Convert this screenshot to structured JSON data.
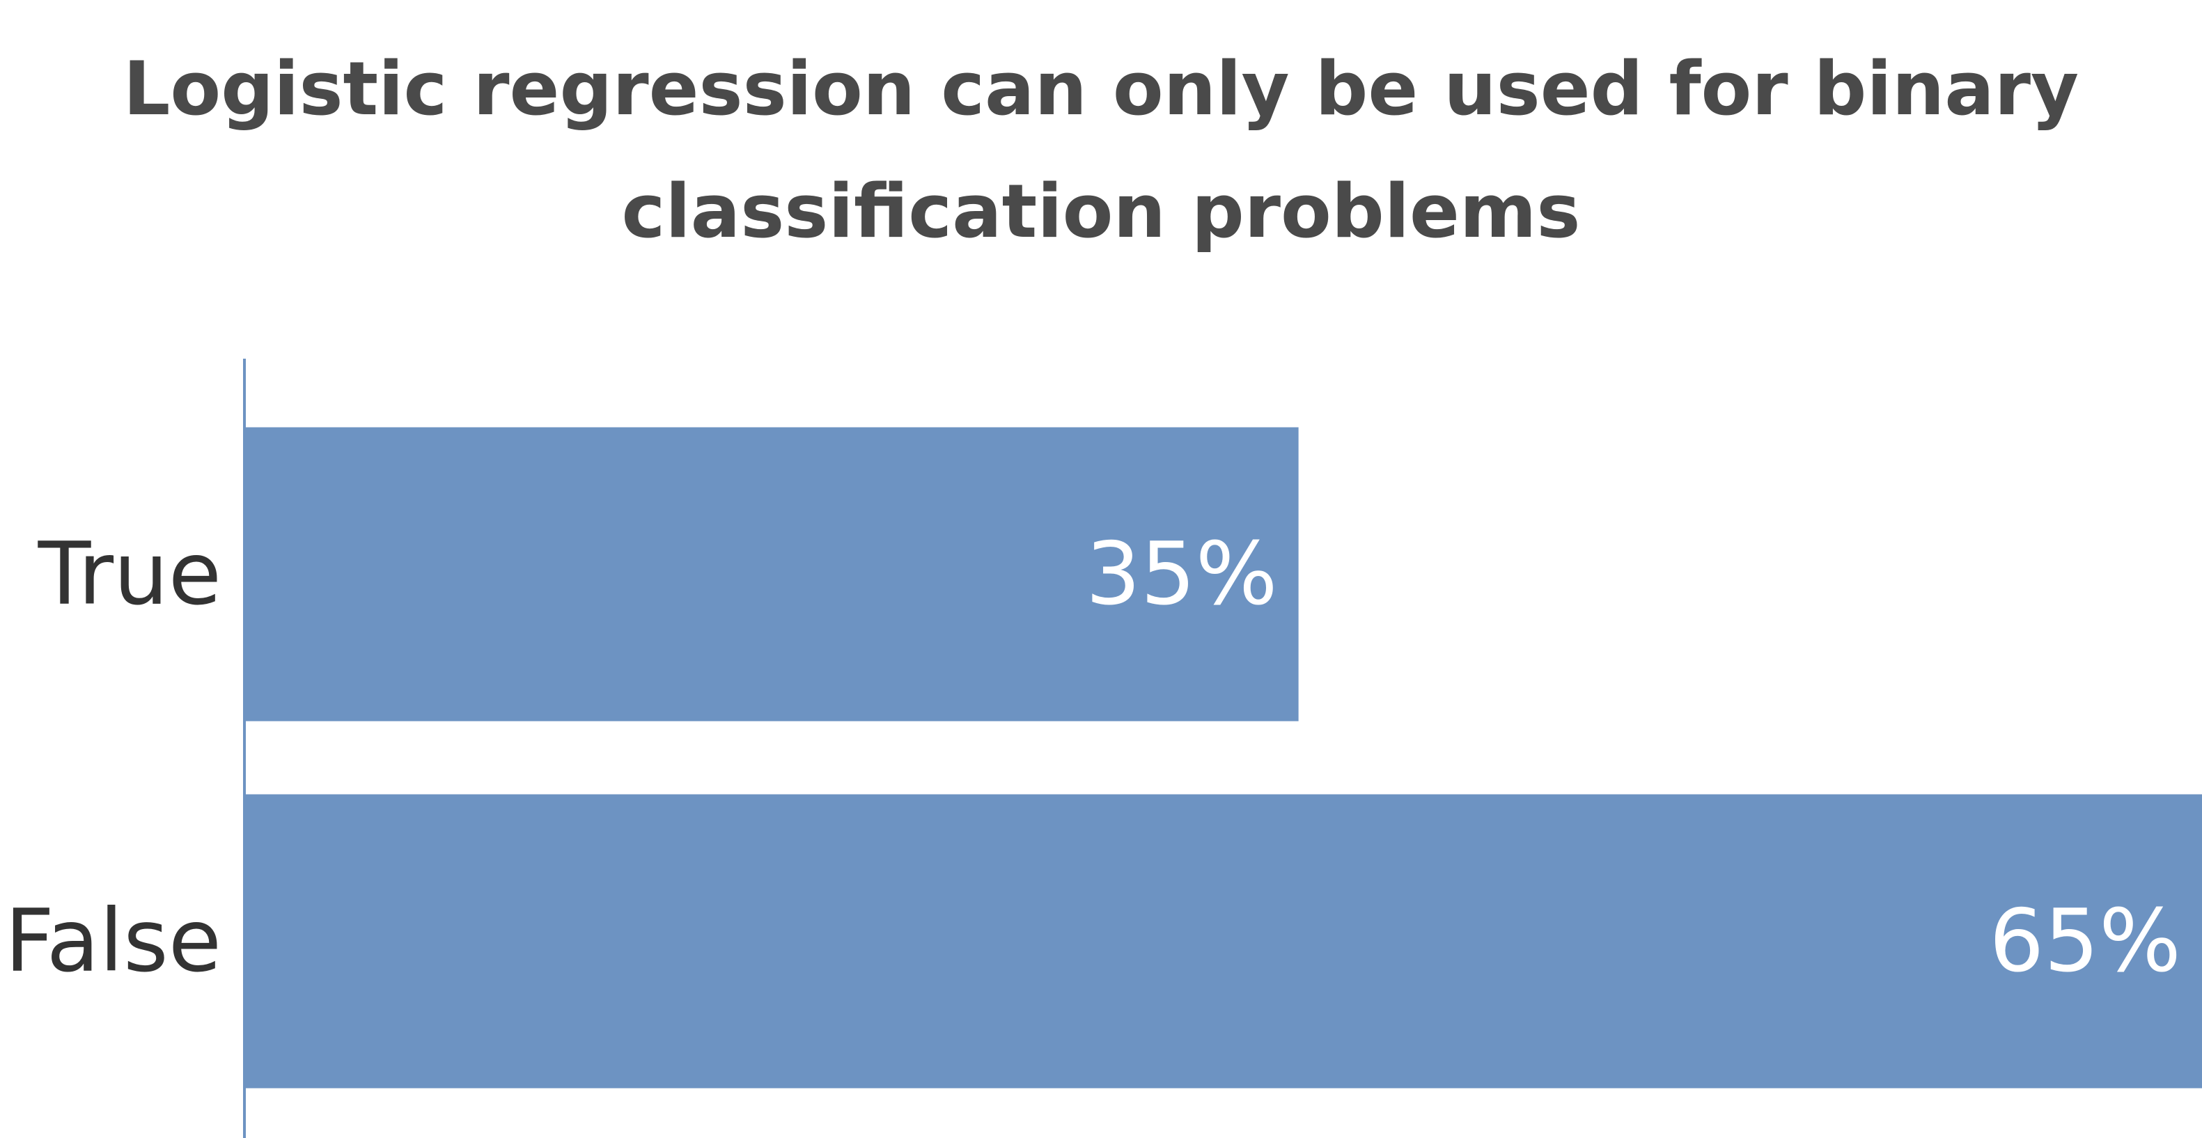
{
  "chart_data": {
    "type": "bar",
    "orientation": "horizontal",
    "title_lines": [
      "Logistic regression can only be used for binary",
      "classification problems"
    ],
    "categories": [
      "True",
      "False"
    ],
    "values": [
      35,
      65
    ],
    "value_labels": [
      "35%",
      "65%"
    ],
    "xlim": [
      0,
      65
    ],
    "grid": false,
    "legend": "none",
    "colors": {
      "bar": "#6d93c2",
      "axis": "#6d93c2",
      "title": "#4a4a4a",
      "category_text": "#333333",
      "value_text": "#ffffff"
    }
  }
}
